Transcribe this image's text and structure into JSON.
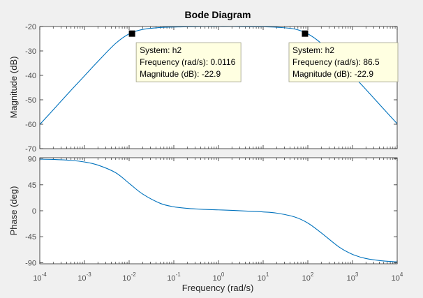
{
  "figure": {
    "background": "#f0f0f0",
    "axes_background": "#ffffff",
    "line_color": "#0072bd",
    "axes_color": "#262626",
    "datatip_background": "#ffffe1"
  },
  "chart_data": {
    "type": "line",
    "title": "Bode Diagram",
    "xlabel": "Frequency  (rad/s)",
    "xscale": "log",
    "xlim": [
      0.0001,
      10000
    ],
    "x_ticks": [
      {
        "value": 0.0001,
        "base": "10",
        "exp": "-4"
      },
      {
        "value": 0.001,
        "base": "10",
        "exp": "-3"
      },
      {
        "value": 0.01,
        "base": "10",
        "exp": "-2"
      },
      {
        "value": 0.1,
        "base": "10",
        "exp": "-1"
      },
      {
        "value": 1,
        "base": "10",
        "exp": "0"
      },
      {
        "value": 10,
        "base": "10",
        "exp": "1"
      },
      {
        "value": 100,
        "base": "10",
        "exp": "2"
      },
      {
        "value": 1000,
        "base": "10",
        "exp": "3"
      },
      {
        "value": 10000,
        "base": "10",
        "exp": "4"
      }
    ],
    "system": "h2",
    "plots": [
      {
        "id": "magnitude",
        "ylabel": "Magnitude (dB)",
        "ylim": [
          -70,
          -20
        ],
        "yticks": [
          -20,
          -30,
          -40,
          -50,
          -60,
          -70
        ],
        "ytick_labels": [
          "-20",
          "-30",
          "-40",
          "-50",
          "-60",
          "-70"
        ],
        "grid": false,
        "series": {
          "x": [
            0.0001,
            0.0002,
            0.0005,
            0.001,
            0.002,
            0.005,
            0.01,
            0.02,
            0.05,
            0.1,
            0.2,
            0.5,
            1,
            2,
            5,
            10,
            20,
            50,
            100,
            200,
            500,
            1000,
            2000,
            5000,
            10000
          ],
          "y": [
            -60.1,
            -54.1,
            -46.1,
            -40.2,
            -34.3,
            -26.9,
            -23.0,
            -21.2,
            -20.4,
            -20.2,
            -20.1,
            -20.0,
            -20.0,
            -20.0,
            -20.1,
            -20.1,
            -20.3,
            -21.0,
            -23.0,
            -26.9,
            -34.0,
            -39.8,
            -45.8,
            -53.8,
            -59.8
          ]
        },
        "datatips": [
          {
            "x": 0.0116,
            "y": -22.9,
            "lines": [
              "System: h2",
              "Frequency (rad/s): 0.0116",
              "Magnitude (dB): -22.9"
            ]
          },
          {
            "x": 86.5,
            "y": -22.9,
            "lines": [
              "System: h2",
              "Frequency (rad/s): 86.5",
              "Magnitude (dB): -22.9"
            ]
          }
        ]
      },
      {
        "id": "phase",
        "ylabel": "Phase (deg)",
        "ylim": [
          -92,
          92
        ],
        "yticks": [
          90,
          45,
          0,
          -45,
          -90
        ],
        "ytick_labels": [
          "90",
          "45",
          "0",
          "-45",
          "-90"
        ],
        "grid": false,
        "series": {
          "x": [
            0.0001,
            0.0002,
            0.0005,
            0.001,
            0.002,
            0.005,
            0.01,
            0.02,
            0.05,
            0.1,
            0.2,
            0.5,
            1,
            2,
            5,
            10,
            20,
            50,
            100,
            200,
            500,
            1000,
            2000,
            5000,
            10000
          ],
          "y": [
            89.5,
            89.0,
            87.3,
            84.6,
            79.2,
            66.0,
            47.6,
            29.1,
            12.8,
            6.9,
            4.1,
            2.3,
            1.5,
            0.7,
            -0.8,
            -2.0,
            -4.1,
            -10.6,
            -21.3,
            -38.3,
            -62.9,
            -75.6,
            -82.8,
            -87.1,
            -88.6
          ]
        }
      }
    ]
  }
}
